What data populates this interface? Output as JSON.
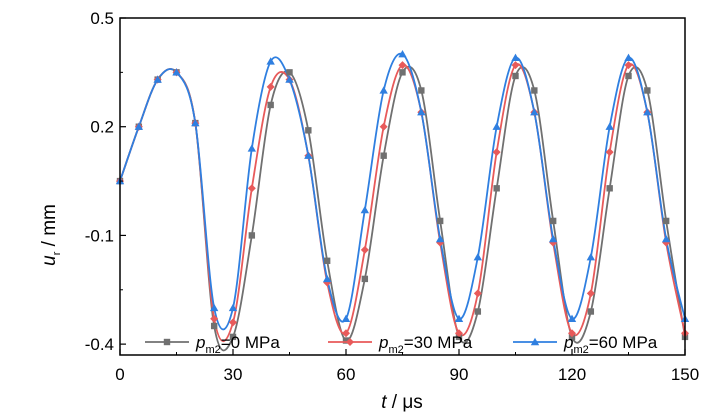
{
  "chart_data": {
    "type": "line",
    "xlabel": {
      "var": "t",
      "unit": " / μs"
    },
    "ylabel": {
      "var": "u",
      "sub": "r",
      "unit": " / mm"
    },
    "xlim": [
      0,
      150
    ],
    "ylim": [
      -0.43,
      0.5
    ],
    "xticks": [
      0,
      30,
      60,
      90,
      120,
      150
    ],
    "xtick_labels": [
      "0",
      "30",
      "60",
      "90",
      "120",
      "150"
    ],
    "yticks": [
      0.5,
      0.2,
      -0.1,
      -0.4
    ],
    "ytick_labels": [
      "0.5",
      "0.2",
      "-0.1",
      "-0.4"
    ],
    "grid": false,
    "legend_position": "bottom",
    "series": [
      {
        "name": "0 MPa",
        "legend": {
          "var": "p",
          "sub": "m2",
          "text": "=0 MPa"
        },
        "color": "#707070",
        "marker": "square",
        "x": [
          0,
          5,
          10,
          15,
          20,
          25,
          30,
          35,
          40,
          45,
          50,
          55,
          60,
          65,
          70,
          75,
          80,
          85,
          90,
          95,
          100,
          105,
          110,
          115,
          120,
          125,
          130,
          135,
          140,
          145,
          150
        ],
        "y": [
          0.05,
          0.2,
          0.33,
          0.35,
          0.21,
          -0.35,
          -0.38,
          -0.1,
          0.26,
          0.35,
          0.19,
          -0.17,
          -0.39,
          -0.22,
          0.12,
          0.35,
          0.3,
          -0.06,
          -0.38,
          -0.31,
          0.03,
          0.34,
          0.3,
          -0.06,
          -0.38,
          -0.31,
          0.03,
          0.34,
          0.3,
          -0.06,
          -0.38
        ]
      },
      {
        "name": "30 MPa",
        "legend": {
          "var": "p",
          "sub": "m2",
          "text": "=30 MPa"
        },
        "color": "#e85a5a",
        "marker": "diamond",
        "x": [
          0,
          5,
          10,
          15,
          20,
          25,
          30,
          35,
          40,
          45,
          50,
          55,
          60,
          65,
          70,
          75,
          80,
          85,
          90,
          95,
          100,
          105,
          110,
          115,
          120,
          125,
          130,
          135,
          140,
          145,
          150
        ],
        "y": [
          0.05,
          0.2,
          0.33,
          0.35,
          0.21,
          -0.33,
          -0.34,
          0.03,
          0.31,
          0.33,
          0.12,
          -0.23,
          -0.37,
          -0.14,
          0.2,
          0.37,
          0.24,
          -0.12,
          -0.37,
          -0.26,
          0.13,
          0.37,
          0.24,
          -0.12,
          -0.37,
          -0.26,
          0.13,
          0.37,
          0.24,
          -0.12,
          -0.37
        ]
      },
      {
        "name": "60 MPa",
        "legend": {
          "var": "p",
          "sub": "m2",
          "text": "=60 MPa"
        },
        "color": "#2f7fe0",
        "marker": "triangle",
        "x": [
          0,
          5,
          10,
          15,
          20,
          25,
          30,
          35,
          40,
          45,
          50,
          55,
          60,
          65,
          70,
          75,
          80,
          85,
          90,
          95,
          100,
          105,
          110,
          115,
          120,
          125,
          130,
          135,
          140,
          145,
          150
        ],
        "y": [
          0.05,
          0.2,
          0.33,
          0.35,
          0.21,
          -0.3,
          -0.3,
          0.14,
          0.38,
          0.33,
          0.12,
          -0.22,
          -0.33,
          -0.03,
          0.3,
          0.4,
          0.24,
          -0.11,
          -0.33,
          -0.16,
          0.2,
          0.39,
          0.24,
          -0.11,
          -0.33,
          -0.16,
          0.2,
          0.39,
          0.24,
          -0.11,
          -0.33
        ]
      }
    ]
  }
}
